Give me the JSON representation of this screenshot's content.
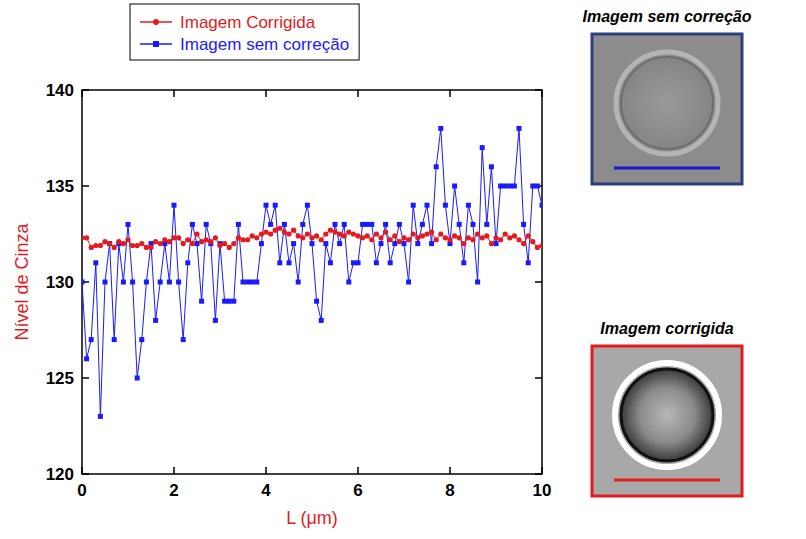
{
  "chart_data": {
    "type": "line",
    "x_label": "L (μm)",
    "y_label": "Nível de Cinza",
    "x": [
      0,
      0.1,
      0.2,
      0.3,
      0.4,
      0.5,
      0.6,
      0.7,
      0.8,
      0.9,
      1,
      1.1,
      1.2,
      1.3,
      1.4,
      1.5,
      1.6,
      1.7,
      1.8,
      1.9,
      2,
      2.1,
      2.2,
      2.3,
      2.4,
      2.5,
      2.6,
      2.7,
      2.8,
      2.9,
      3,
      3.1,
      3.2,
      3.3,
      3.4,
      3.5,
      3.6,
      3.7,
      3.8,
      3.9,
      4,
      4.1,
      4.2,
      4.3,
      4.4,
      4.5,
      4.6,
      4.7,
      4.8,
      4.9,
      5,
      5.1,
      5.2,
      5.3,
      5.4,
      5.5,
      5.6,
      5.7,
      5.8,
      5.9,
      6,
      6.1,
      6.2,
      6.3,
      6.4,
      6.5,
      6.6,
      6.7,
      6.8,
      6.9,
      7,
      7.1,
      7.2,
      7.3,
      7.4,
      7.5,
      7.6,
      7.7,
      7.8,
      7.9,
      8,
      8.1,
      8.2,
      8.3,
      8.4,
      8.5,
      8.6,
      8.7,
      8.8,
      8.9,
      9,
      9.1,
      9.2,
      9.3,
      9.4,
      9.5,
      9.6,
      9.7,
      9.8,
      9.9,
      10
    ],
    "series": [
      {
        "name": "Imagem Corrigida",
        "color": "#e41a1c",
        "marker": "circle",
        "line_style": "solid",
        "values": [
          132.3,
          132.3,
          131.8,
          131.9,
          131.9,
          132.1,
          132.0,
          131.8,
          132.1,
          132.0,
          132.2,
          131.9,
          131.9,
          132.0,
          131.8,
          131.8,
          132.1,
          132.0,
          132.2,
          132.1,
          132.3,
          132.3,
          132.0,
          132.2,
          132.0,
          132.5,
          132.1,
          132.2,
          132.1,
          132.3,
          131.9,
          132.0,
          131.8,
          132.0,
          132.3,
          132.2,
          132.2,
          132.4,
          132.3,
          132.5,
          132.6,
          132.5,
          132.7,
          132.8,
          132.6,
          132.5,
          132.7,
          132.4,
          132.3,
          132.5,
          132.3,
          132.4,
          132.2,
          132.5,
          132.7,
          132.6,
          132.5,
          132.4,
          132.6,
          132.5,
          132.4,
          132.3,
          132.4,
          132.2,
          132.5,
          132.3,
          132.6,
          132.2,
          132.4,
          132.1,
          132.3,
          132.2,
          132.5,
          132.3,
          132.4,
          132.5,
          132.6,
          132.2,
          132.5,
          132.3,
          132.2,
          132.4,
          132.3,
          132.0,
          132.3,
          132.2,
          132.5,
          132.3,
          132.4,
          132.0,
          132.3,
          132.2,
          132.5,
          132.3,
          132.4,
          132.2,
          132.0,
          132.4,
          132.1,
          131.8,
          131.9
        ]
      },
      {
        "name": "Imagem sem correção",
        "color": "#1a1aff",
        "marker": "square",
        "line_style": "solid",
        "values": [
          130,
          126,
          127,
          131,
          123,
          130,
          132,
          127,
          132,
          130,
          133,
          130,
          125,
          127,
          130,
          132,
          128,
          130,
          132,
          130,
          134,
          130,
          127,
          131,
          133,
          132,
          129,
          133,
          132,
          128,
          132,
          129,
          129,
          129,
          133,
          130,
          130,
          130,
          130,
          132,
          134,
          133,
          134,
          131,
          133,
          131,
          132,
          130,
          133,
          134,
          132,
          129,
          128,
          132,
          131,
          133,
          132,
          133,
          130,
          131,
          131,
          133,
          133,
          133,
          131,
          132,
          133,
          131,
          132,
          133,
          132,
          130,
          134,
          132,
          133,
          134,
          132,
          136,
          138,
          134,
          132,
          135,
          133,
          131,
          134,
          133,
          130,
          137,
          133,
          136,
          132,
          135,
          135,
          135,
          135,
          138,
          133,
          131,
          135,
          135,
          134
        ]
      }
    ],
    "xlim": [
      0,
      10
    ],
    "xticks": [
      0,
      2,
      4,
      6,
      8,
      10
    ],
    "ylim": [
      120,
      140
    ],
    "yticks": [
      120,
      125,
      130,
      135,
      140
    ],
    "grid": false,
    "legend": "top"
  },
  "images": [
    {
      "title": "Imagem sem correção"
    },
    {
      "title": "Imagem corrigida"
    }
  ]
}
